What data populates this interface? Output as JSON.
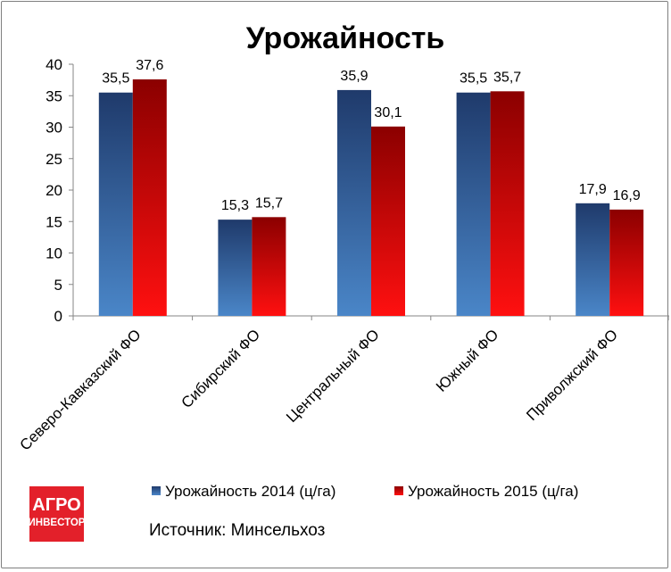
{
  "chart_data": {
    "type": "bar",
    "title": "Урожайность",
    "xlabel": "",
    "ylabel": "",
    "ylim": [
      0,
      40
    ],
    "yticks": [
      0,
      5,
      10,
      15,
      20,
      25,
      30,
      35,
      40
    ],
    "grid": false,
    "legend_position": "bottom",
    "categories": [
      "Северо-Кавказский ФО",
      "Сибирский ФО",
      "Центральный ФО",
      "Южный ФО",
      "Приволжский ФО"
    ],
    "series": [
      {
        "name": "Урожайность 2014 (ц/га)",
        "values": [
          35.5,
          15.3,
          35.9,
          35.5,
          17.9
        ],
        "labels": [
          "35,5",
          "15,3",
          "35,9",
          "35,5",
          "17,9"
        ],
        "color_top": "#1f3a6b",
        "color_bottom": "#4a86c8"
      },
      {
        "name": "Урожайность 2015 (ц/га)",
        "values": [
          37.6,
          15.7,
          30.1,
          35.7,
          16.9
        ],
        "labels": [
          "37,6",
          "15,7",
          "30,1",
          "35,7",
          "16,9"
        ],
        "color_top": "#8b0000",
        "color_bottom": "#ff1010"
      }
    ]
  },
  "source_text": "Источник: Минсельхоз",
  "logo": {
    "line1": "АГРО",
    "line2": "ИНВЕСТОР",
    "color": "#e3202a"
  }
}
